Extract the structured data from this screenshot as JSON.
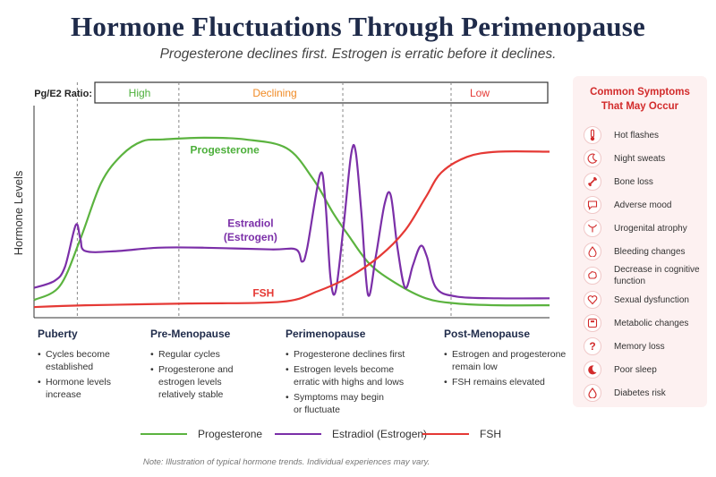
{
  "header": {
    "title": "Hormone Fluctuations Through Perimenopause",
    "subtitle": "Progesterone declines first. Estrogen is erratic before it declines."
  },
  "chart_data": {
    "type": "line",
    "ylabel": "Hormone Levels",
    "ratio_bar": {
      "label": "Pg/E2 Ratio:",
      "segments": [
        {
          "label": "High",
          "color": "#4caf3a"
        },
        {
          "label": "Declining",
          "color": "#f08a24"
        },
        {
          "label": "Low",
          "color": "#e53935"
        }
      ]
    },
    "stage_boundaries": [
      8.4,
      28.1,
      59.9,
      80.9
    ],
    "x_range": [
      0,
      100
    ],
    "y_range": [
      0,
      100
    ],
    "series": [
      {
        "name": "Progesterone",
        "color": "#5bb33f",
        "points": [
          [
            0,
            5
          ],
          [
            5,
            13
          ],
          [
            9,
            40
          ],
          [
            13,
            72
          ],
          [
            17,
            88
          ],
          [
            21,
            96
          ],
          [
            25,
            97
          ],
          [
            33,
            98
          ],
          [
            41,
            97
          ],
          [
            49,
            92
          ],
          [
            54,
            75
          ],
          [
            58,
            55
          ],
          [
            61,
            42
          ],
          [
            65,
            26
          ],
          [
            70,
            15
          ],
          [
            76,
            6
          ],
          [
            82,
            3
          ],
          [
            90,
            2
          ],
          [
            100,
            2
          ]
        ]
      },
      {
        "name": "Estradiol (Estrogen)",
        "color": "#7b2fa8",
        "points": [
          [
            0,
            12
          ],
          [
            4,
            16
          ],
          [
            6,
            24
          ],
          [
            8.1,
            48
          ],
          [
            9,
            40
          ],
          [
            10,
            33
          ],
          [
            16,
            33
          ],
          [
            24,
            35
          ],
          [
            33,
            35
          ],
          [
            46,
            34
          ],
          [
            50.8,
            34
          ],
          [
            52,
            27
          ],
          [
            53,
            35
          ],
          [
            55.5,
            77
          ],
          [
            56.5,
            62
          ],
          [
            57.5,
            18
          ],
          [
            58.5,
            10
          ],
          [
            60,
            46
          ],
          [
            61.5,
            88
          ],
          [
            62.4,
            90
          ],
          [
            63.5,
            55
          ],
          [
            64.8,
            8
          ],
          [
            66.3,
            30
          ],
          [
            68,
            60
          ],
          [
            69.2,
            65
          ],
          [
            70.5,
            35
          ],
          [
            72,
            12
          ],
          [
            73.5,
            25
          ],
          [
            75,
            36
          ],
          [
            76.2,
            30
          ],
          [
            78,
            12
          ],
          [
            82,
            7
          ],
          [
            90,
            6
          ],
          [
            100,
            6
          ]
        ]
      },
      {
        "name": "FSH",
        "color": "#e53935",
        "points": [
          [
            0,
            1
          ],
          [
            10,
            2
          ],
          [
            30,
            3
          ],
          [
            48,
            4
          ],
          [
            55,
            10
          ],
          [
            61,
            18
          ],
          [
            67,
            30
          ],
          [
            72,
            45
          ],
          [
            76,
            64
          ],
          [
            79,
            78
          ],
          [
            84,
            87
          ],
          [
            90,
            90
          ],
          [
            100,
            90
          ]
        ]
      }
    ],
    "annotations": [
      {
        "text": "Progesterone",
        "x": 37,
        "y": 89,
        "color": "#4caf3a"
      },
      {
        "text": "Estradiol",
        "x": 42,
        "y": 47,
        "color": "#7b2fa8"
      },
      {
        "text": "(Estrogen)",
        "x": 42,
        "y": 39,
        "color": "#7b2fa8"
      },
      {
        "text": "FSH",
        "x": 44.5,
        "y": 7,
        "color": "#e53935"
      }
    ]
  },
  "stages": [
    {
      "name": "Puberty",
      "bullets": [
        "Cycles become established",
        "Hormone levels increase"
      ]
    },
    {
      "name": "Pre-Menopause",
      "bullets": [
        "Regular cycles",
        "Progesterone and estrogen levels relatively stable"
      ]
    },
    {
      "name": "Perimenopause",
      "bullets": [
        "Progesterone declines first",
        "Estrogen levels become erratic with highs and lows",
        "Symptoms may begin or fluctuate"
      ]
    },
    {
      "name": "Post-Menopause",
      "bullets": [
        "Estrogen and progesterone remain low",
        "FSH remains elevated"
      ]
    }
  ],
  "legend": [
    {
      "label": "Progesterone",
      "color": "#5bb33f"
    },
    {
      "label": "Estradiol (Estrogen)",
      "color": "#7b2fa8"
    },
    {
      "label": "FSH",
      "color": "#e53935"
    }
  ],
  "note": "Note: Illustration of typical hormone trends. Individual experiences may vary.",
  "symptoms": {
    "title_line1": "Common Symptoms",
    "title_line2": "That May Occur",
    "items": [
      {
        "label": "Hot flashes",
        "icon": "thermometer-icon"
      },
      {
        "label": "Night sweats",
        "icon": "moon-icon"
      },
      {
        "label": "Bone loss",
        "icon": "bone-icon"
      },
      {
        "label": "Adverse mood",
        "icon": "chat-bubble-icon"
      },
      {
        "label": "Urogenital atrophy",
        "icon": "uterus-icon"
      },
      {
        "label": "Bleeding changes",
        "icon": "drop-icon"
      },
      {
        "label": "Decrease in cognitive function",
        "icon": "brain-icon"
      },
      {
        "label": "Sexual dysfunction",
        "icon": "heart-icon"
      },
      {
        "label": "Metabolic changes",
        "icon": "scale-icon"
      },
      {
        "label": "Memory loss",
        "icon": "question-icon"
      },
      {
        "label": "Poor sleep",
        "icon": "crescent-icon"
      },
      {
        "label": "Diabetes risk",
        "icon": "blood-drop-icon"
      }
    ],
    "accent": "#d22b2b"
  }
}
